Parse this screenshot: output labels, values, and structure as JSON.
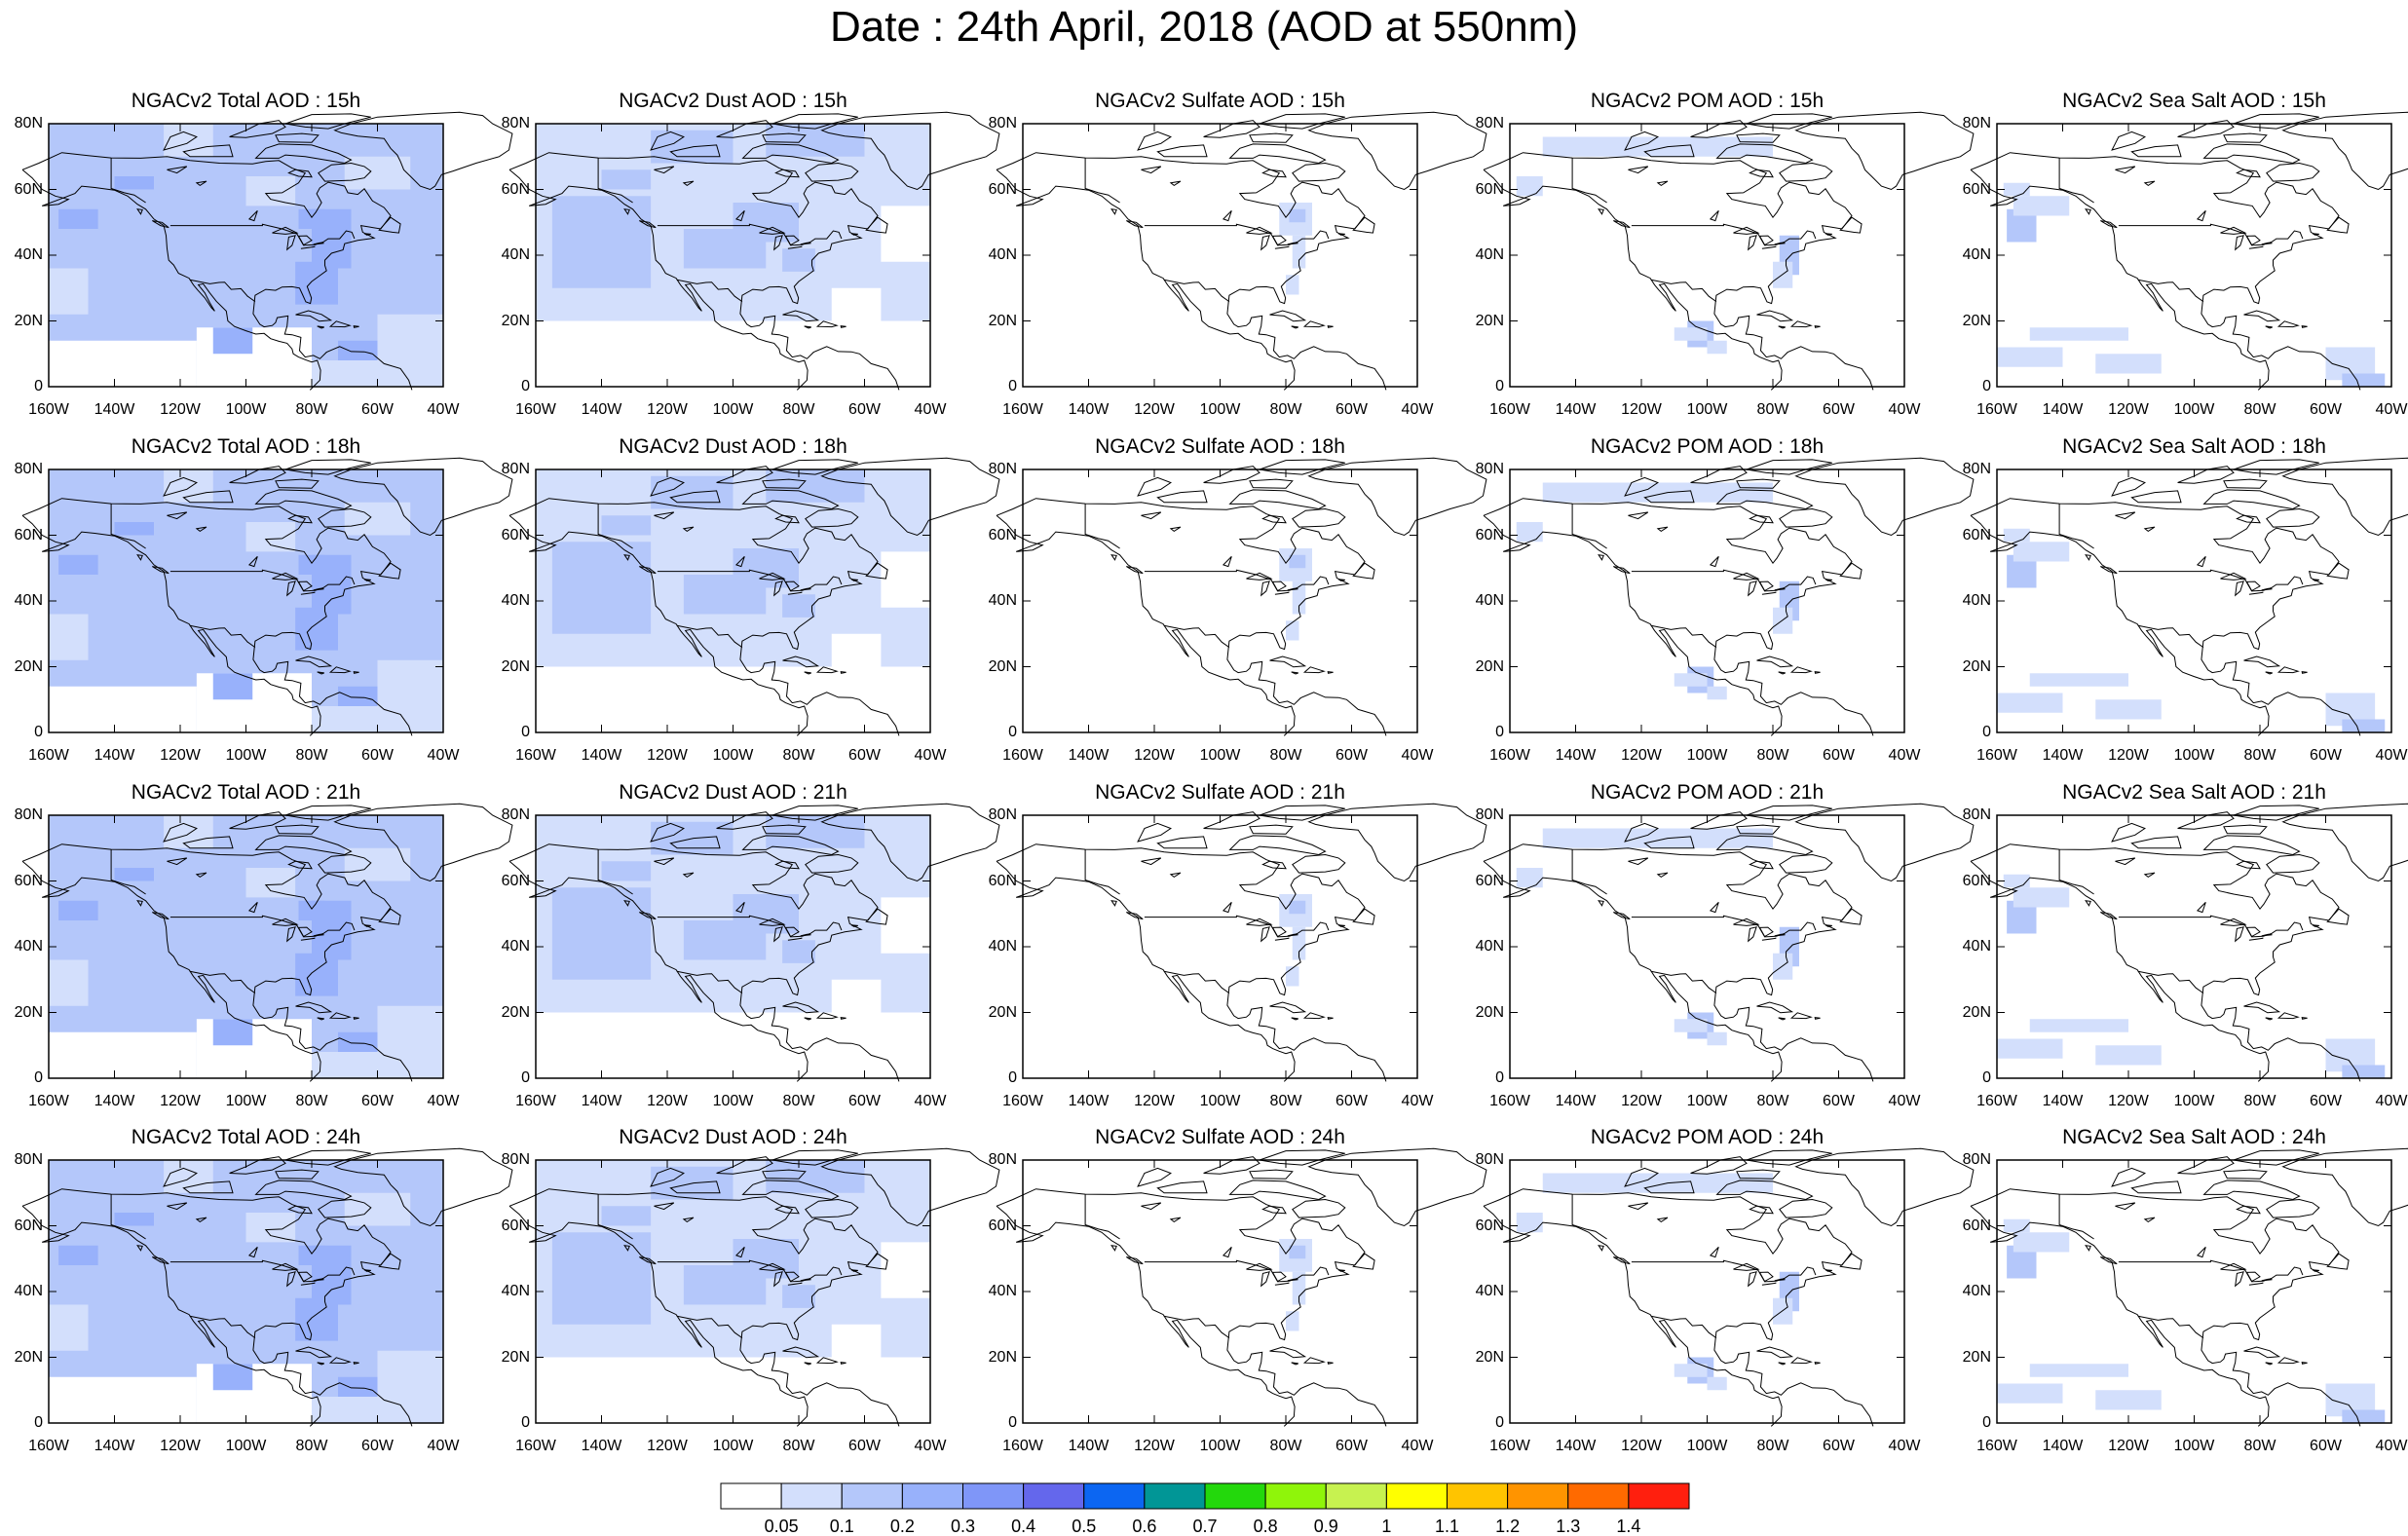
{
  "title": "Date : 24th April, 2018 (AOD at 550nm)",
  "axes": {
    "lat_labels": [
      "0",
      "20N",
      "40N",
      "60N",
      "80N"
    ],
    "lon_labels": [
      "160W",
      "140W",
      "120W",
      "100W",
      "80W",
      "60W",
      "40W"
    ],
    "lat_range": [
      0,
      80
    ],
    "lon_range": [
      -160,
      -40
    ]
  },
  "panels": [
    [
      {
        "title": "NGACv2 Total AOD : 15h",
        "variable": "total",
        "hour": 15
      },
      {
        "title": "NGACv2 Dust AOD : 15h",
        "variable": "dust",
        "hour": 15
      },
      {
        "title": "NGACv2 Sulfate AOD : 15h",
        "variable": "sulfate",
        "hour": 15
      },
      {
        "title": "NGACv2 POM AOD : 15h",
        "variable": "pom",
        "hour": 15
      },
      {
        "title": "NGACv2 Sea Salt AOD : 15h",
        "variable": "seasalt",
        "hour": 15
      }
    ],
    [
      {
        "title": "NGACv2 Total AOD : 18h",
        "variable": "total",
        "hour": 18
      },
      {
        "title": "NGACv2 Dust AOD : 18h",
        "variable": "dust",
        "hour": 18
      },
      {
        "title": "NGACv2 Sulfate AOD : 18h",
        "variable": "sulfate",
        "hour": 18
      },
      {
        "title": "NGACv2 POM AOD : 18h",
        "variable": "pom",
        "hour": 18
      },
      {
        "title": "NGACv2 Sea Salt AOD : 18h",
        "variable": "seasalt",
        "hour": 18
      }
    ],
    [
      {
        "title": "NGACv2 Total AOD : 21h",
        "variable": "total",
        "hour": 21
      },
      {
        "title": "NGACv2 Dust AOD : 21h",
        "variable": "dust",
        "hour": 21
      },
      {
        "title": "NGACv2 Sulfate AOD : 21h",
        "variable": "sulfate",
        "hour": 21
      },
      {
        "title": "NGACv2 POM AOD : 21h",
        "variable": "pom",
        "hour": 21
      },
      {
        "title": "NGACv2 Sea Salt AOD : 21h",
        "variable": "seasalt",
        "hour": 21
      }
    ],
    [
      {
        "title": "NGACv2 Total AOD : 24h",
        "variable": "total",
        "hour": 24
      },
      {
        "title": "NGACv2 Dust AOD : 24h",
        "variable": "dust",
        "hour": 24
      },
      {
        "title": "NGACv2 Sulfate AOD : 24h",
        "variable": "sulfate",
        "hour": 24
      },
      {
        "title": "NGACv2 POM AOD : 24h",
        "variable": "pom",
        "hour": 24
      },
      {
        "title": "NGACv2 Sea Salt  AOD : 24h",
        "variable": "seasalt",
        "hour": 24
      }
    ]
  ],
  "colorbar": {
    "labels": [
      "0.05",
      "0.1",
      "0.2",
      "0.3",
      "0.4",
      "0.5",
      "0.6",
      "0.7",
      "0.8",
      "0.9",
      "1",
      "1.1",
      "1.2",
      "1.3",
      "1.4"
    ],
    "colors": [
      "#ffffff",
      "#d3dffc",
      "#b4c7fa",
      "#98b1fb",
      "#7f96f8",
      "#6467ec",
      "#0c66f2",
      "#019696",
      "#23d80c",
      "#8ff50a",
      "#c7f250",
      "#ffff00",
      "#ffc400",
      "#ff9400",
      "#ff6a00",
      "#ff1f0e"
    ]
  },
  "colors": {
    "ocean_line": "#000000",
    "frame": "#000000"
  }
}
